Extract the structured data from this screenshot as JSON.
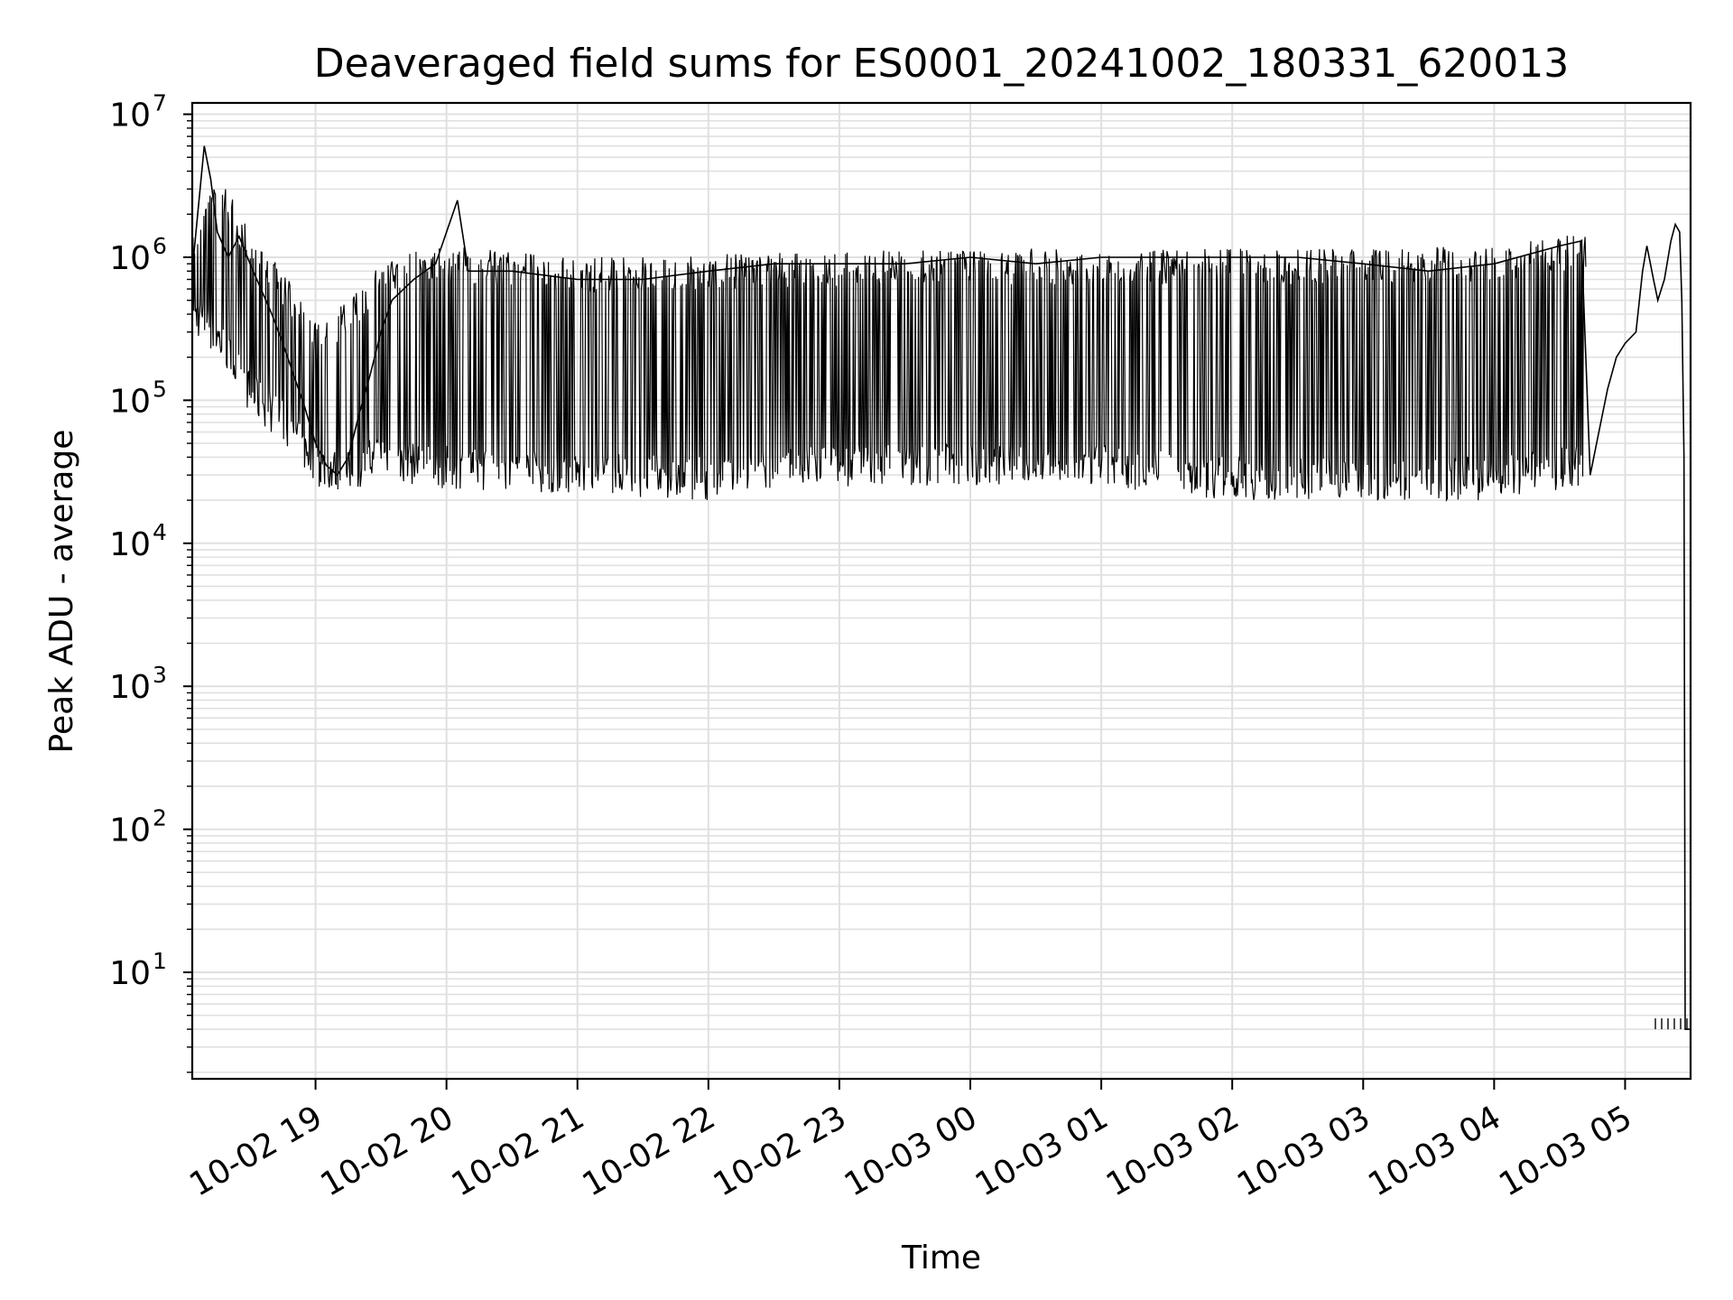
{
  "chart_data": {
    "type": "line",
    "title": "Deaveraged field sums for ES0001_20241002_180331_620013",
    "xlabel": "Time",
    "ylabel": "Peak ADU - average",
    "x_scale": "time",
    "y_scale": "log",
    "xlim": [
      "2024-10-02 18:03:31",
      "2024-10-03 05:30:00"
    ],
    "ylim": [
      1.8,
      12000000
    ],
    "grid": true,
    "x_tick_labels": [
      "10-02 19",
      "10-02 20",
      "10-02 21",
      "10-02 22",
      "10-02 23",
      "10-03 00",
      "10-03 01",
      "10-03 02",
      "10-03 03",
      "10-03 04",
      "10-03 05"
    ],
    "y_tick_values": [
      10,
      100,
      1000,
      10000,
      100000,
      1000000,
      10000000
    ],
    "y_tick_labels": [
      {
        "base": "10",
        "exp": "1"
      },
      {
        "base": "10",
        "exp": "2"
      },
      {
        "base": "10",
        "exp": "3"
      },
      {
        "base": "10",
        "exp": "4"
      },
      {
        "base": "10",
        "exp": "5"
      },
      {
        "base": "10",
        "exp": "6"
      },
      {
        "base": "10",
        "exp": "7"
      }
    ],
    "series": [
      {
        "color": "#000000",
        "points": [
          [
            "2024-10-02 18:03:31",
            800000
          ],
          [
            "2024-10-02 18:06:00",
            2000000
          ],
          [
            "2024-10-02 18:09:00",
            6000000
          ],
          [
            "2024-10-02 18:12:00",
            3500000
          ],
          [
            "2024-10-02 18:15:00",
            1500000
          ],
          [
            "2024-10-02 18:20:00",
            1000000
          ],
          [
            "2024-10-02 18:25:00",
            1400000
          ],
          [
            "2024-10-02 18:30:00",
            900000
          ],
          [
            "2024-10-02 18:35:00",
            600000
          ],
          [
            "2024-10-02 18:40:00",
            400000
          ],
          [
            "2024-10-02 18:45:00",
            250000
          ],
          [
            "2024-10-02 18:50:00",
            150000
          ],
          [
            "2024-10-02 18:55:00",
            90000
          ],
          [
            "2024-10-02 19:00:00",
            50000
          ],
          [
            "2024-10-02 19:05:00",
            35000
          ],
          [
            "2024-10-02 19:10:00",
            30000
          ],
          [
            "2024-10-02 19:15:00",
            40000
          ],
          [
            "2024-10-02 19:20:00",
            80000
          ],
          [
            "2024-10-02 19:25:00",
            150000
          ],
          [
            "2024-10-02 19:30:00",
            300000
          ],
          [
            "2024-10-02 19:35:00",
            500000
          ],
          [
            "2024-10-02 19:45:00",
            700000
          ],
          [
            "2024-10-02 19:55:00",
            900000
          ],
          [
            "2024-10-02 20:05:00",
            2500000
          ],
          [
            "2024-10-02 20:10:00",
            800000
          ],
          [
            "2024-10-02 20:30:00",
            800000
          ],
          [
            "2024-10-02 21:00:00",
            700000
          ],
          [
            "2024-10-02 21:30:00",
            700000
          ],
          [
            "2024-10-02 22:00:00",
            800000
          ],
          [
            "2024-10-02 22:30:00",
            900000
          ],
          [
            "2024-10-02 23:00:00",
            900000
          ],
          [
            "2024-10-02 23:30:00",
            900000
          ],
          [
            "2024-10-03 00:00:00",
            1000000
          ],
          [
            "2024-10-03 00:30:00",
            900000
          ],
          [
            "2024-10-03 01:00:00",
            1000000
          ],
          [
            "2024-10-03 01:30:00",
            1000000
          ],
          [
            "2024-10-03 02:00:00",
            1000000
          ],
          [
            "2024-10-03 02:30:00",
            1000000
          ],
          [
            "2024-10-03 03:00:00",
            900000
          ],
          [
            "2024-10-03 03:30:00",
            800000
          ],
          [
            "2024-10-03 04:00:00",
            900000
          ],
          [
            "2024-10-03 04:30:00",
            1200000
          ],
          [
            "2024-10-03 04:40:00",
            1300000
          ],
          [
            "2024-10-03 04:44:00",
            30000
          ],
          [
            "2024-10-03 04:48:00",
            60000
          ],
          [
            "2024-10-03 04:52:00",
            120000
          ],
          [
            "2024-10-03 04:56:00",
            200000
          ],
          [
            "2024-10-03 05:00:00",
            250000
          ],
          [
            "2024-10-03 05:05:00",
            300000
          ],
          [
            "2024-10-03 05:08:00",
            800000
          ],
          [
            "2024-10-03 05:10:00",
            1200000
          ],
          [
            "2024-10-03 05:13:00",
            700000
          ],
          [
            "2024-10-03 05:15:00",
            500000
          ],
          [
            "2024-10-03 05:18:00",
            700000
          ],
          [
            "2024-10-03 05:21:00",
            1300000
          ],
          [
            "2024-10-03 05:23:00",
            1700000
          ],
          [
            "2024-10-03 05:25:00",
            1500000
          ],
          [
            "2024-10-03 05:26:00",
            500000
          ],
          [
            "2024-10-03 05:27:00",
            40000
          ],
          [
            "2024-10-03 05:27:30",
            4
          ],
          [
            "2024-10-03 05:30:00",
            4
          ]
        ],
        "envelope": {
          "upper": [
            [
              "2024-10-02 18:03:31",
              1500000
            ],
            [
              "2024-10-02 18:15:00",
              4000000
            ],
            [
              "2024-10-02 18:30:00",
              1500000
            ],
            [
              "2024-10-02 18:45:00",
              800000
            ],
            [
              "2024-10-02 19:00:00",
              350000
            ],
            [
              "2024-10-02 19:15:00",
              500000
            ],
            [
              "2024-10-02 19:30:00",
              900000
            ],
            [
              "2024-10-02 19:45:00",
              1100000
            ],
            [
              "2024-10-02 20:00:00",
              1200000
            ],
            [
              "2024-10-02 21:00:00",
              1000000
            ],
            [
              "2024-10-02 22:00:00",
              1050000
            ],
            [
              "2024-10-02 23:00:00",
              1100000
            ],
            [
              "2024-10-03 00:00:00",
              1150000
            ],
            [
              "2024-10-03 01:00:00",
              1150000
            ],
            [
              "2024-10-03 02:00:00",
              1150000
            ],
            [
              "2024-10-03 03:00:00",
              1150000
            ],
            [
              "2024-10-03 04:00:00",
              1200000
            ],
            [
              "2024-10-03 04:42:00",
              1500000
            ]
          ],
          "lower": [
            [
              "2024-10-02 18:03:31",
              300000
            ],
            [
              "2024-10-02 18:15:00",
              200000
            ],
            [
              "2024-10-02 18:30:00",
              80000
            ],
            [
              "2024-10-02 18:45:00",
              50000
            ],
            [
              "2024-10-02 19:00:00",
              25000
            ],
            [
              "2024-10-02 19:15:00",
              22000
            ],
            [
              "2024-10-02 19:30:00",
              30000
            ],
            [
              "2024-10-02 19:45:00",
              25000
            ],
            [
              "2024-10-02 20:00:00",
              24000
            ],
            [
              "2024-10-02 21:00:00",
              22000
            ],
            [
              "2024-10-02 22:00:00",
              20000
            ],
            [
              "2024-10-02 23:00:00",
              25000
            ],
            [
              "2024-10-03 00:00:00",
              25000
            ],
            [
              "2024-10-03 01:00:00",
              25000
            ],
            [
              "2024-10-03 02:00:00",
              20000
            ],
            [
              "2024-10-03 03:00:00",
              20000
            ],
            [
              "2024-10-03 04:00:00",
              20000
            ],
            [
              "2024-10-03 04:42:00",
              25000
            ]
          ]
        }
      }
    ]
  }
}
